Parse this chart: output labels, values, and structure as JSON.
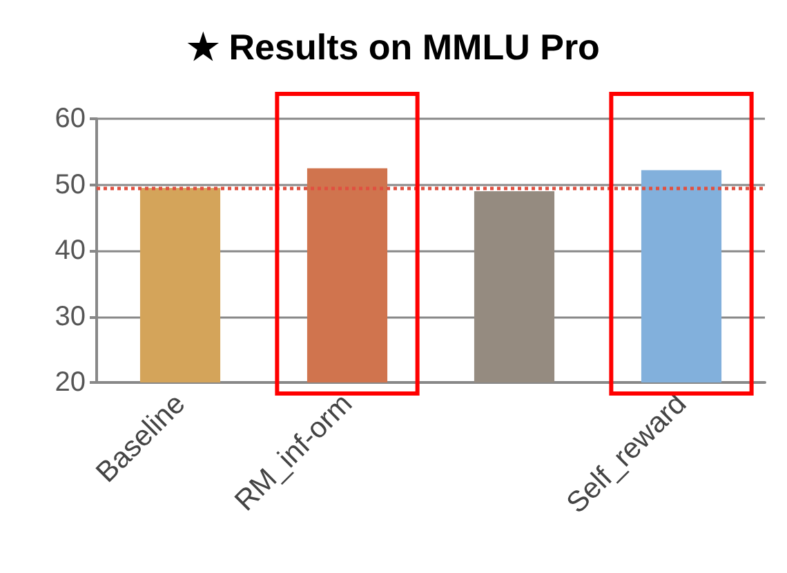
{
  "chart_data": {
    "type": "bar",
    "title": "★ Results on MMLU Pro",
    "categories": [
      "Baseline",
      "RM_inf-orm",
      null,
      "Self_reward"
    ],
    "values": [
      49.5,
      52.5,
      49.0,
      52.2
    ],
    "colors": [
      "#d4a45a",
      "#d0744e",
      "#958b80",
      "#82b0dc"
    ],
    "ylim": [
      20,
      60
    ],
    "yticks": [
      20,
      30,
      40,
      50,
      60
    ],
    "grid": "y",
    "ref_lines": [
      {
        "axis": "y",
        "value": 49.5,
        "color": "#e05040",
        "line_style": "dotted"
      }
    ]
  }
}
